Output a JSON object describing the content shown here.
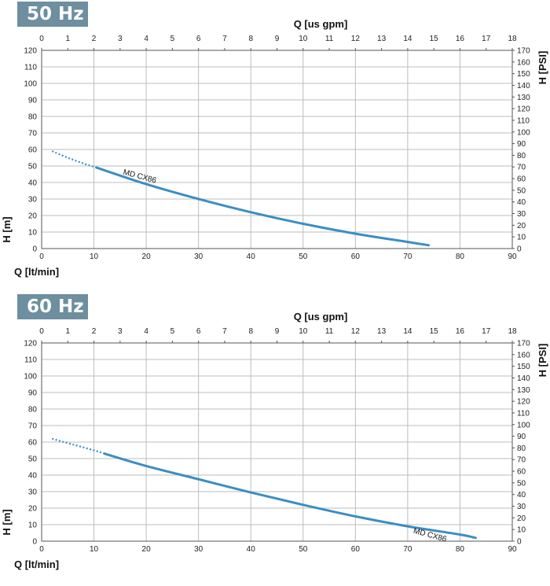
{
  "chart_data": [
    {
      "type": "line",
      "badge": "50 Hz",
      "xlabel": "Q [lt/min]",
      "ylabel": "H [m]",
      "x2label": "Q [us gpm]",
      "y2label": "H [PSI]",
      "xlim": [
        0,
        90
      ],
      "ylim": [
        0,
        120
      ],
      "x2lim": [
        0,
        18
      ],
      "y2lim": [
        0,
        170
      ],
      "x_ticks": [
        0,
        10,
        20,
        30,
        40,
        50,
        60,
        70,
        80,
        90
      ],
      "y_ticks": [
        0,
        10,
        20,
        30,
        40,
        50,
        60,
        70,
        80,
        90,
        100,
        110,
        120
      ],
      "x2_ticks": [
        0,
        1,
        2,
        3,
        4,
        5,
        6,
        7,
        8,
        9,
        10,
        11,
        12,
        13,
        14,
        15,
        16,
        17,
        18
      ],
      "y2_ticks": [
        0,
        10,
        20,
        30,
        40,
        50,
        60,
        70,
        80,
        90,
        100,
        110,
        120,
        130,
        140,
        150,
        160,
        170
      ],
      "grid": true,
      "series": [
        {
          "name": "MD CX86",
          "color": "#3b8ec2",
          "dotted": {
            "x": [
              2,
              5,
              8,
              10.5
            ],
            "y": [
              59,
              55,
              51.5,
              49
            ]
          },
          "solid": {
            "x": [
              10.5,
              20,
              30,
              40,
              50,
              60,
              70,
              74
            ],
            "y": [
              49,
              39,
              30,
              22,
              15,
              9,
              4,
              2
            ]
          },
          "label_at": {
            "x": 15.5,
            "y": 45
          }
        }
      ]
    },
    {
      "type": "line",
      "badge": "60 Hz",
      "xlabel": "Q [lt/min]",
      "ylabel": "H [m]",
      "x2label": "Q [us gpm]",
      "y2label": "H [PSI]",
      "xlim": [
        0,
        90
      ],
      "ylim": [
        0,
        120
      ],
      "x2lim": [
        0,
        18
      ],
      "y2lim": [
        0,
        170
      ],
      "x_ticks": [
        0,
        10,
        20,
        30,
        40,
        50,
        60,
        70,
        80,
        90
      ],
      "y_ticks": [
        0,
        10,
        20,
        30,
        40,
        50,
        60,
        70,
        80,
        90,
        100,
        110,
        120
      ],
      "x2_ticks": [
        0,
        1,
        2,
        3,
        4,
        5,
        6,
        7,
        8,
        9,
        10,
        11,
        12,
        13,
        14,
        15,
        16,
        17,
        18
      ],
      "y2_ticks": [
        0,
        10,
        20,
        30,
        40,
        50,
        60,
        70,
        80,
        90,
        100,
        110,
        120,
        130,
        140,
        150,
        160,
        170
      ],
      "grid": true,
      "series": [
        {
          "name": "MD CX86",
          "color": "#3b8ec2",
          "dotted": {
            "x": [
              2,
              6,
              10,
              12
            ],
            "y": [
              62,
              58.5,
              55,
              53
            ]
          },
          "solid": {
            "x": [
              12,
              20,
              30,
              40,
              50,
              60,
              70,
              80,
              83
            ],
            "y": [
              53,
              45.5,
              37.5,
              29.5,
              22,
              15,
              9,
              4,
              2
            ]
          },
          "label_at": {
            "x": 71,
            "y": 5
          }
        }
      ]
    }
  ]
}
